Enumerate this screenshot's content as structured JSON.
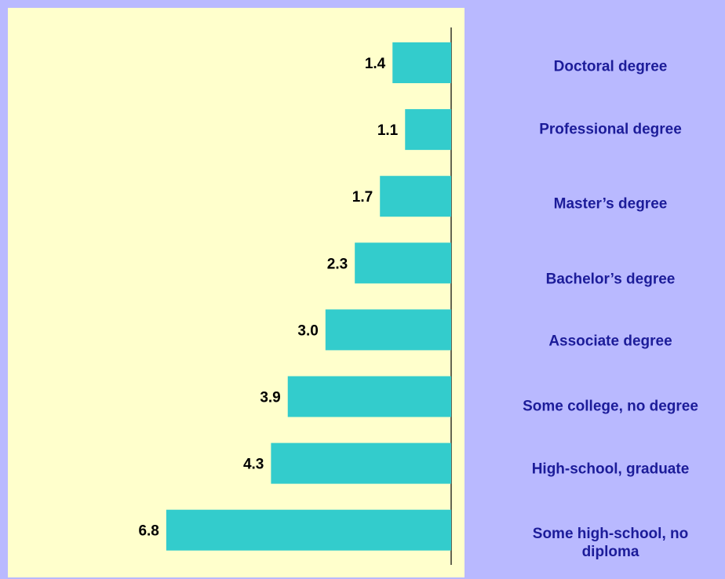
{
  "chart_data": {
    "type": "bar",
    "orientation": "horizontal",
    "categories": [
      "Doctoral degree",
      "Professional degree",
      "Master’s degree",
      "Bachelor’s degree",
      "Associate degree",
      "Some college, no degree",
      "High-school, graduate",
      "Some high-school, no diploma"
    ],
    "values": [
      1.4,
      1.1,
      1.7,
      2.3,
      3.0,
      3.9,
      4.3,
      6.8
    ],
    "value_labels": [
      "1.4",
      "1.1",
      "1.7",
      "2.3",
      "3.0",
      "3.9",
      "4.3",
      "6.8"
    ],
    "color": "#33cccc"
  }
}
